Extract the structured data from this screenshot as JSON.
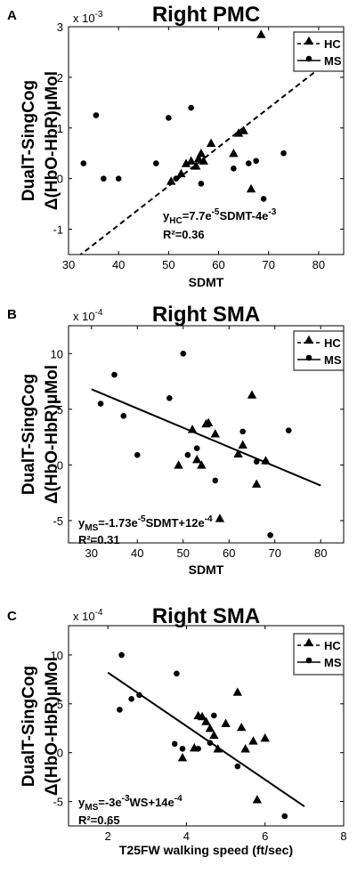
{
  "chart_data": [
    {
      "type": "scatter",
      "panel_letter": "A",
      "title": "Right PMC",
      "ylabel_line1": "DualT-SingCog",
      "ylabel_line2": "Δ(HbO-HbR)μMol",
      "xlabel": "SDMT",
      "exponent_label": "x 10",
      "exponent_power": "-3",
      "xlim": [
        30,
        85
      ],
      "ylim": [
        -1.5,
        3
      ],
      "xticks": [
        "30",
        "40",
        "50",
        "60",
        "70",
        "80"
      ],
      "yticks": [
        "-1",
        "0",
        "1",
        "2",
        "3"
      ],
      "legend": {
        "position": "top-right",
        "entries": [
          "HC",
          "MS"
        ]
      },
      "equation": "y<sub>HC</sub>=7.7e<sup>-5</sup>SDMT-4e<sup>-3</sup>",
      "r2": "R²=0.36",
      "fit_line": {
        "series": "HC",
        "style": "dashed",
        "x": [
          30.5,
          85
        ],
        "y": [
          -1.65,
          2.55
        ]
      },
      "series": [
        {
          "name": "HC",
          "marker": "triangle",
          "x": [
            50.5,
            52.5,
            53.5,
            54.5,
            55.5,
            56,
            56.5,
            57,
            58.5,
            63,
            64,
            65,
            66.5,
            68.5
          ],
          "y": [
            -0.05,
            0.1,
            0.3,
            0.35,
            0.25,
            0.4,
            0.5,
            0.35,
            0.7,
            0.5,
            0.9,
            0.95,
            -0.2,
            2.85
          ]
        },
        {
          "name": "MS",
          "marker": "circle",
          "x": [
            33,
            35.5,
            37,
            40,
            47.5,
            50,
            51.5,
            54.5,
            56.5,
            63,
            66,
            67.5,
            69,
            73
          ],
          "y": [
            0.3,
            1.25,
            0.0,
            0.0,
            0.3,
            1.2,
            0.0,
            1.4,
            -0.1,
            0.2,
            0.3,
            0.35,
            -0.4,
            0.5
          ]
        }
      ]
    },
    {
      "type": "scatter",
      "panel_letter": "B",
      "title": "Right SMA",
      "ylabel_line1": "DualT-SingCog",
      "ylabel_line2": "Δ(HbO-HbR)μMol",
      "xlabel": "SDMT",
      "exponent_label": "x 10",
      "exponent_power": "-4",
      "xlim": [
        25,
        85
      ],
      "ylim": [
        -7,
        12.5
      ],
      "xticks": [
        "30",
        "40",
        "50",
        "60",
        "70",
        "80"
      ],
      "yticks": [
        "-5",
        "0",
        "5",
        "10"
      ],
      "legend": {
        "position": "top-right",
        "entries": [
          "HC",
          "MS"
        ]
      },
      "equation": "y<sub>MS</sub>=-1.73e<sup>-5</sup>SDMT+12e<sup>-4</sup>",
      "r2": "R²=0.31",
      "fit_line": {
        "series": "MS",
        "style": "solid",
        "x": [
          30,
          80
        ],
        "y": [
          6.8,
          -1.85
        ]
      },
      "series": [
        {
          "name": "HC",
          "marker": "triangle",
          "x": [
            49,
            52,
            53,
            54,
            55,
            55.5,
            57,
            58,
            62,
            63,
            65,
            66,
            68
          ],
          "y": [
            0,
            3.2,
            0.5,
            0,
            3.7,
            3.8,
            2.8,
            -4.8,
            1,
            1.8,
            6.3,
            -1.7,
            0.4
          ]
        },
        {
          "name": "MS",
          "marker": "circle",
          "x": [
            32,
            35,
            37,
            40,
            47,
            50,
            51,
            53,
            57,
            63,
            66,
            68,
            69,
            73
          ],
          "y": [
            5.5,
            8.1,
            4.4,
            0.9,
            6.0,
            10.0,
            0.9,
            1.5,
            -1.4,
            3.0,
            0.3,
            0.3,
            -6.3,
            3.1
          ]
        }
      ]
    },
    {
      "type": "scatter",
      "panel_letter": "C",
      "title": "Right SMA",
      "ylabel_line1": "DualT-SingCog",
      "ylabel_line2": "Δ(HbO-HbR)μMol",
      "xlabel": "T25FW walking speed (ft/sec)",
      "exponent_label": "x 10",
      "exponent_power": "-4",
      "xlim": [
        1,
        8
      ],
      "ylim": [
        -7.5,
        13
      ],
      "xticks": [
        "2",
        "4",
        "6",
        "8"
      ],
      "yticks": [
        "-5",
        "0",
        "5",
        "10"
      ],
      "legend": {
        "position": "top-right",
        "entries": [
          "HC",
          "MS"
        ]
      },
      "equation": "y<sub>MS</sub>=-3e<sup>-3</sup>WS+14e<sup>-4</sup>",
      "r2": "R²=0.65",
      "fit_line": {
        "series": "MS",
        "style": "solid",
        "x": [
          2,
          7
        ],
        "y": [
          8.2,
          -5.5
        ]
      },
      "series": [
        {
          "name": "HC",
          "marker": "triangle",
          "x": [
            3.9,
            4.2,
            4.3,
            4.4,
            4.5,
            4.6,
            4.7,
            4.8,
            5.0,
            5.3,
            5.4,
            5.5,
            5.7,
            5.8,
            6.0
          ],
          "y": [
            -0.5,
            0.5,
            3.8,
            3.7,
            3.2,
            2.5,
            1.8,
            0.4,
            3.0,
            6.2,
            2.6,
            0.4,
            1.2,
            -4.8,
            1.5
          ]
        },
        {
          "name": "MS",
          "marker": "circle",
          "x": [
            2.3,
            2.35,
            2.6,
            2.8,
            3.7,
            3.75,
            3.9,
            4.3,
            4.6,
            4.7,
            5.3,
            6.5
          ],
          "y": [
            4.4,
            10.0,
            5.5,
            5.9,
            0.9,
            8.1,
            0.4,
            0.4,
            1.0,
            3.8,
            -1.4,
            -6.5
          ]
        }
      ]
    }
  ]
}
